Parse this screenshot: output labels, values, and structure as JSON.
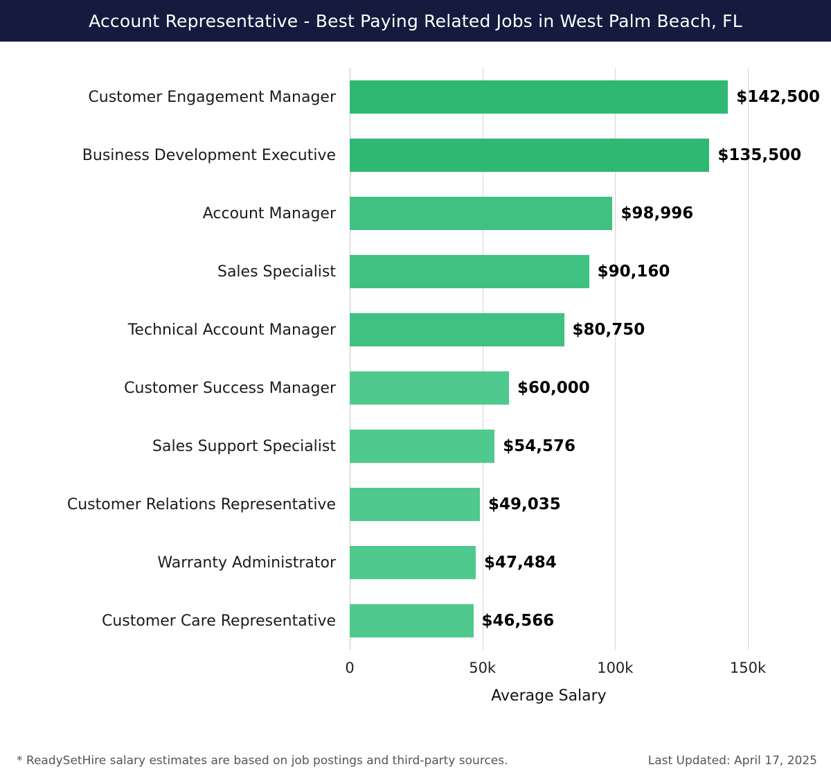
{
  "header": {
    "title": "Account Representative - Best Paying Related Jobs in West Palm Beach, FL",
    "bg_color": "#141b3e"
  },
  "chart_data": {
    "type": "bar",
    "orientation": "horizontal",
    "title": "Account Representative - Best Paying Related Jobs in West Palm Beach, FL",
    "categories": [
      "Customer Engagement Manager",
      "Business Development Executive",
      "Account Manager",
      "Sales Specialist",
      "Technical Account Manager",
      "Customer Success Manager",
      "Sales Support Specialist",
      "Customer Relations Representative",
      "Warranty Administrator",
      "Customer Care Representative"
    ],
    "values": [
      142500,
      135500,
      98996,
      90160,
      80750,
      60000,
      54576,
      49035,
      47484,
      46566
    ],
    "value_labels": [
      "$142,500",
      "$135,500",
      "$98,996",
      "$90,160",
      "$80,750",
      "$60,000",
      "$54,576",
      "$49,035",
      "$47,484",
      "$46,566"
    ],
    "bar_colors": [
      "#2eb872",
      "#2eb872",
      "#3fc181",
      "#3fc181",
      "#3fc181",
      "#4fc98d",
      "#4fc98d",
      "#4fc98d",
      "#4fc98d",
      "#4fc98d"
    ],
    "xlabel": "Average Salary",
    "ylabel": "",
    "xlim": [
      0,
      150000
    ],
    "x_ticks": [
      "0",
      "50k",
      "100k",
      "150k"
    ],
    "x_tick_values": [
      0,
      50000,
      100000,
      150000
    ],
    "grid": true,
    "legend": false
  },
  "footer": {
    "note": "* ReadySetHire salary estimates are based on job postings and third-party sources.",
    "last_updated": "Last Updated: April 17, 2025"
  }
}
